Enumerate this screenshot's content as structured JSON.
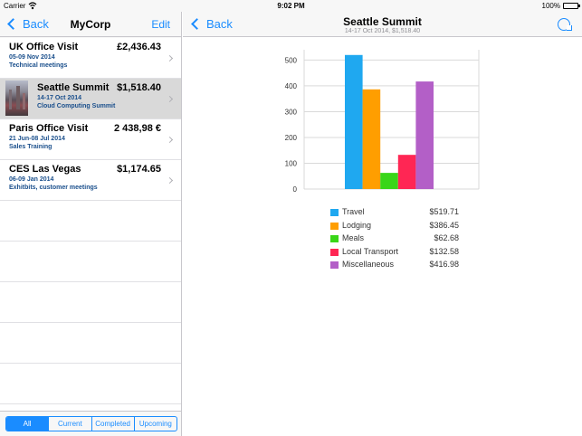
{
  "status_bar": {
    "carrier": "Carrier",
    "time": "9:02 PM",
    "battery": "100%"
  },
  "master": {
    "back_label": "Back",
    "title": "MyCorp",
    "edit_label": "Edit",
    "trips": [
      {
        "title": "UK Office Visit",
        "amount": "£2,436.43",
        "date": "05-09 Nov 2014",
        "subtitle": "Technical meetings",
        "thumbnail": false,
        "selected": false
      },
      {
        "title": "Seattle Summit",
        "amount": "$1,518.40",
        "date": "14-17 Oct 2014",
        "subtitle": "Cloud Computing Summit",
        "thumbnail": true,
        "selected": true
      },
      {
        "title": "Paris Office Visit",
        "amount": "2 438,98 €",
        "date": "21 Jun-08 Jul 2014",
        "subtitle": "Sales Training",
        "thumbnail": false,
        "selected": false
      },
      {
        "title": "CES Las Vegas",
        "amount": "$1,174.65",
        "date": "06-09 Jan 2014",
        "subtitle": "Exhitbits, customer meetings",
        "thumbnail": false,
        "selected": false
      }
    ],
    "filters": [
      {
        "label": "All",
        "active": true
      },
      {
        "label": "Current",
        "active": false
      },
      {
        "label": "Completed",
        "active": false
      },
      {
        "label": "Upcoming",
        "active": false
      }
    ]
  },
  "detail": {
    "back_label": "Back",
    "title": "Seattle Summit",
    "subtitle": "14-17 Oct 2014, $1,518.40",
    "refresh_icon": "refresh-icon"
  },
  "chart_data": {
    "type": "bar",
    "categories": [
      "Travel",
      "Lodging",
      "Meals",
      "Local Transport",
      "Miscellaneous"
    ],
    "values": [
      519.71,
      386.45,
      62.68,
      132.58,
      416.98
    ],
    "value_labels": [
      "$519.71",
      "$386.45",
      "$62.68",
      "$132.58",
      "$416.98"
    ],
    "colors": [
      "#1fa8f0",
      "#ff9e00",
      "#39d618",
      "#ff2654",
      "#b35fc7"
    ],
    "yticks": [
      0,
      100,
      200,
      300,
      400,
      500
    ],
    "ylim": [
      0,
      540
    ],
    "grid": true,
    "legend": "bottom"
  }
}
